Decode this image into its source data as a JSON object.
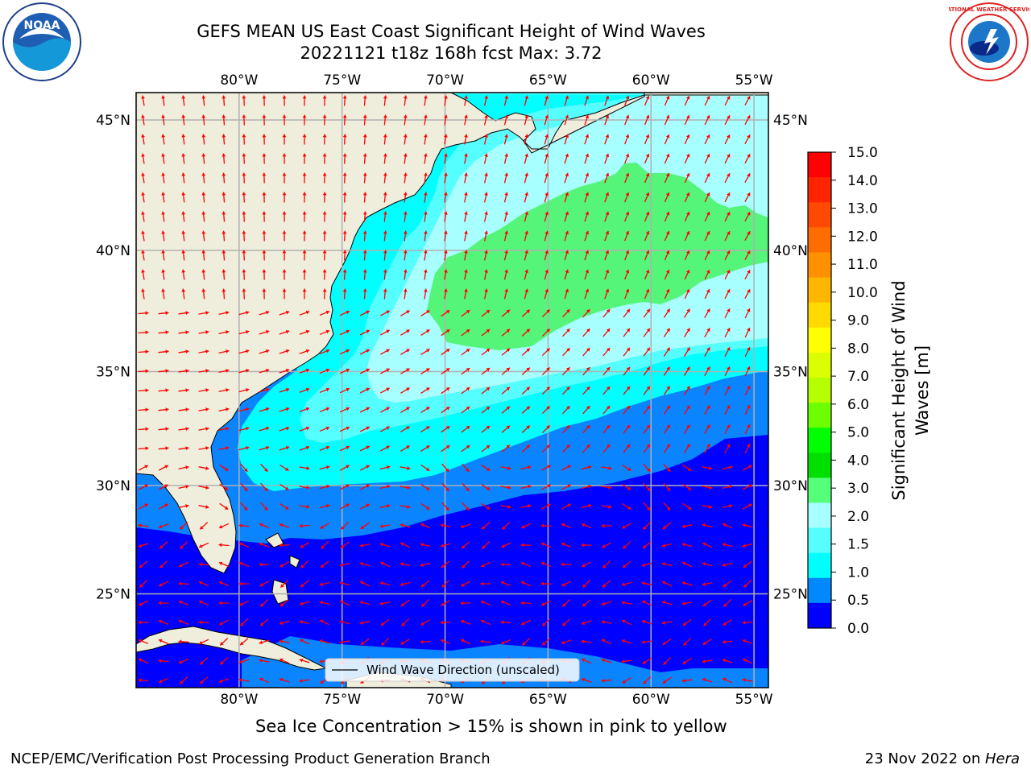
{
  "title": {
    "line1": "GEFS MEAN US East Coast Significant Height of Wind Waves",
    "line2": "20221121 t18z 168h fcst   Max: 3.72"
  },
  "axes": {
    "lon_ticks": [
      "80°W",
      "75°W",
      "70°W",
      "65°W",
      "60°W",
      "55°W"
    ],
    "lat_ticks": [
      "45°N",
      "40°N",
      "35°N",
      "30°N",
      "25°N"
    ],
    "lon_values": [
      -80,
      -75,
      -70,
      -65,
      -60,
      -55
    ],
    "lat_values": [
      45,
      40,
      35,
      30,
      25
    ],
    "extent": {
      "lon_min": -85,
      "lon_max": -54.3,
      "lat_min": 20.5,
      "lat_max": 46
    }
  },
  "colorbar": {
    "label": "Significant Height of Wind Waves [m]",
    "ticks": [
      "15.0",
      "14.0",
      "13.0",
      "12.0",
      "11.0",
      "10.0",
      "9.0",
      "8.0",
      "7.0",
      "6.0",
      "5.0",
      "4.0",
      "3.0",
      "2.0",
      "1.5",
      "1.0",
      "0.5",
      "0.0"
    ],
    "colors": [
      "#ff0000",
      "#ff2400",
      "#ff4800",
      "#ff6d00",
      "#ff9100",
      "#ffb600",
      "#ffda00",
      "#ffff00",
      "#dbff00",
      "#b6ff00",
      "#6dff00",
      "#00ff00",
      "#00e000",
      "#55ff7a",
      "#a7ffff",
      "#55ffff",
      "#00ffff",
      "#0088ff",
      "#0000ff"
    ]
  },
  "legend": {
    "label": "Wind Wave Direction (unscaled)"
  },
  "colors": {
    "land": "#efeedd",
    "band_0_0_5": "#0000ff",
    "band_0_5_1_0": "#0a84ff",
    "band_1_0_1_5": "#00ffff",
    "band_1_5_2_0": "#55ffff",
    "band_2_0_3_0": "#a7ffff",
    "band_3_0_4_0": "#55f57a",
    "arrow": "#ff0000",
    "grid": "#b0b0b0"
  },
  "footer": {
    "subtitle": "Sea Ice Concentration > 15% is shown in pink to yellow",
    "credit_left": "NCEP/EMC/Verification Post Processing Product Generation Branch",
    "credit_right_date": "23 Nov 2022 on ",
    "credit_right_host": "Hera"
  },
  "logos": {
    "left": "NOAA",
    "right": "NATIONAL WEATHER SERVICE"
  }
}
